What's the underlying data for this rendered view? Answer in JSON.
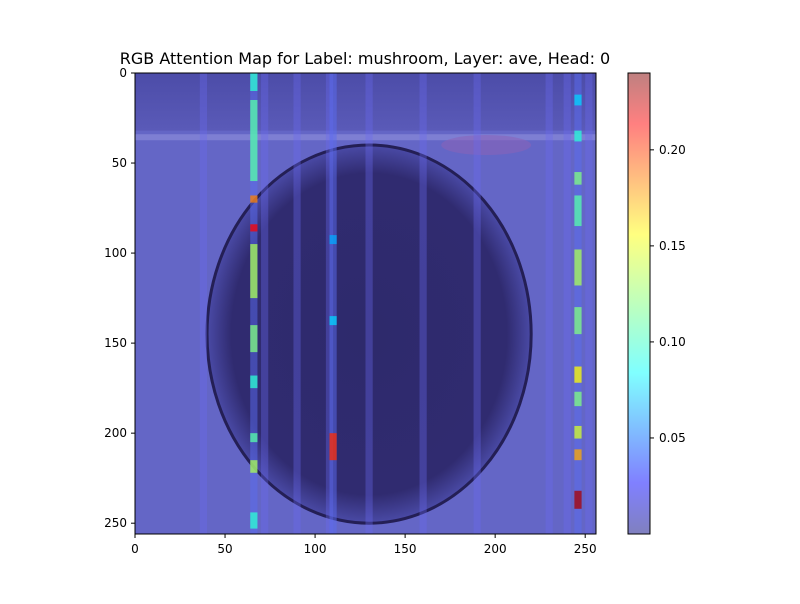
{
  "chart_data": {
    "type": "heatmap",
    "title": "RGB Attention Map for Label: mushroom, Layer: ave, Head: 0",
    "xlabel": "",
    "ylabel": "",
    "xlim": [
      0,
      256
    ],
    "ylim": [
      256,
      0
    ],
    "x_ticks": [
      0,
      50,
      100,
      150,
      200,
      250
    ],
    "y_ticks": [
      0,
      50,
      100,
      150,
      200,
      250
    ],
    "colorbar": {
      "ticks": [
        0.05,
        0.1,
        0.15,
        0.2
      ],
      "tick_labels": [
        "0.05",
        "0.10",
        "0.15",
        "0.20"
      ],
      "range": [
        0.0,
        0.24
      ],
      "colormap": "jet",
      "alpha": 0.5
    },
    "background": {
      "description_hidden": true,
      "disk_center": [
        130,
        145
      ],
      "disk_radius_x": 90,
      "disk_radius_y": 105,
      "disk_color": "#302a6e",
      "bg_color": "#6466c6",
      "top_band_color": "#4a4aa8"
    },
    "hot_columns": [
      {
        "x": 66,
        "segments": [
          [
            0,
            10,
            0.1
          ],
          [
            15,
            60,
            0.11
          ],
          [
            68,
            72,
            0.18
          ],
          [
            84,
            88,
            0.21
          ],
          [
            95,
            125,
            0.13
          ],
          [
            140,
            155,
            0.12
          ],
          [
            168,
            175,
            0.1
          ],
          [
            200,
            205,
            0.11
          ],
          [
            215,
            222,
            0.13
          ],
          [
            244,
            253,
            0.1
          ]
        ]
      },
      {
        "x": 110,
        "segments": [
          [
            200,
            215,
            0.2
          ],
          [
            135,
            140,
            0.08
          ],
          [
            90,
            95,
            0.07
          ]
        ]
      },
      {
        "x": 246,
        "segments": [
          [
            12,
            18,
            0.08
          ],
          [
            32,
            38,
            0.1
          ],
          [
            55,
            62,
            0.12
          ],
          [
            68,
            85,
            0.11
          ],
          [
            98,
            118,
            0.13
          ],
          [
            130,
            145,
            0.12
          ],
          [
            163,
            172,
            0.15
          ],
          [
            177,
            185,
            0.12
          ],
          [
            196,
            203,
            0.14
          ],
          [
            209,
            215,
            0.17
          ],
          [
            232,
            242,
            0.23
          ]
        ]
      }
    ]
  }
}
